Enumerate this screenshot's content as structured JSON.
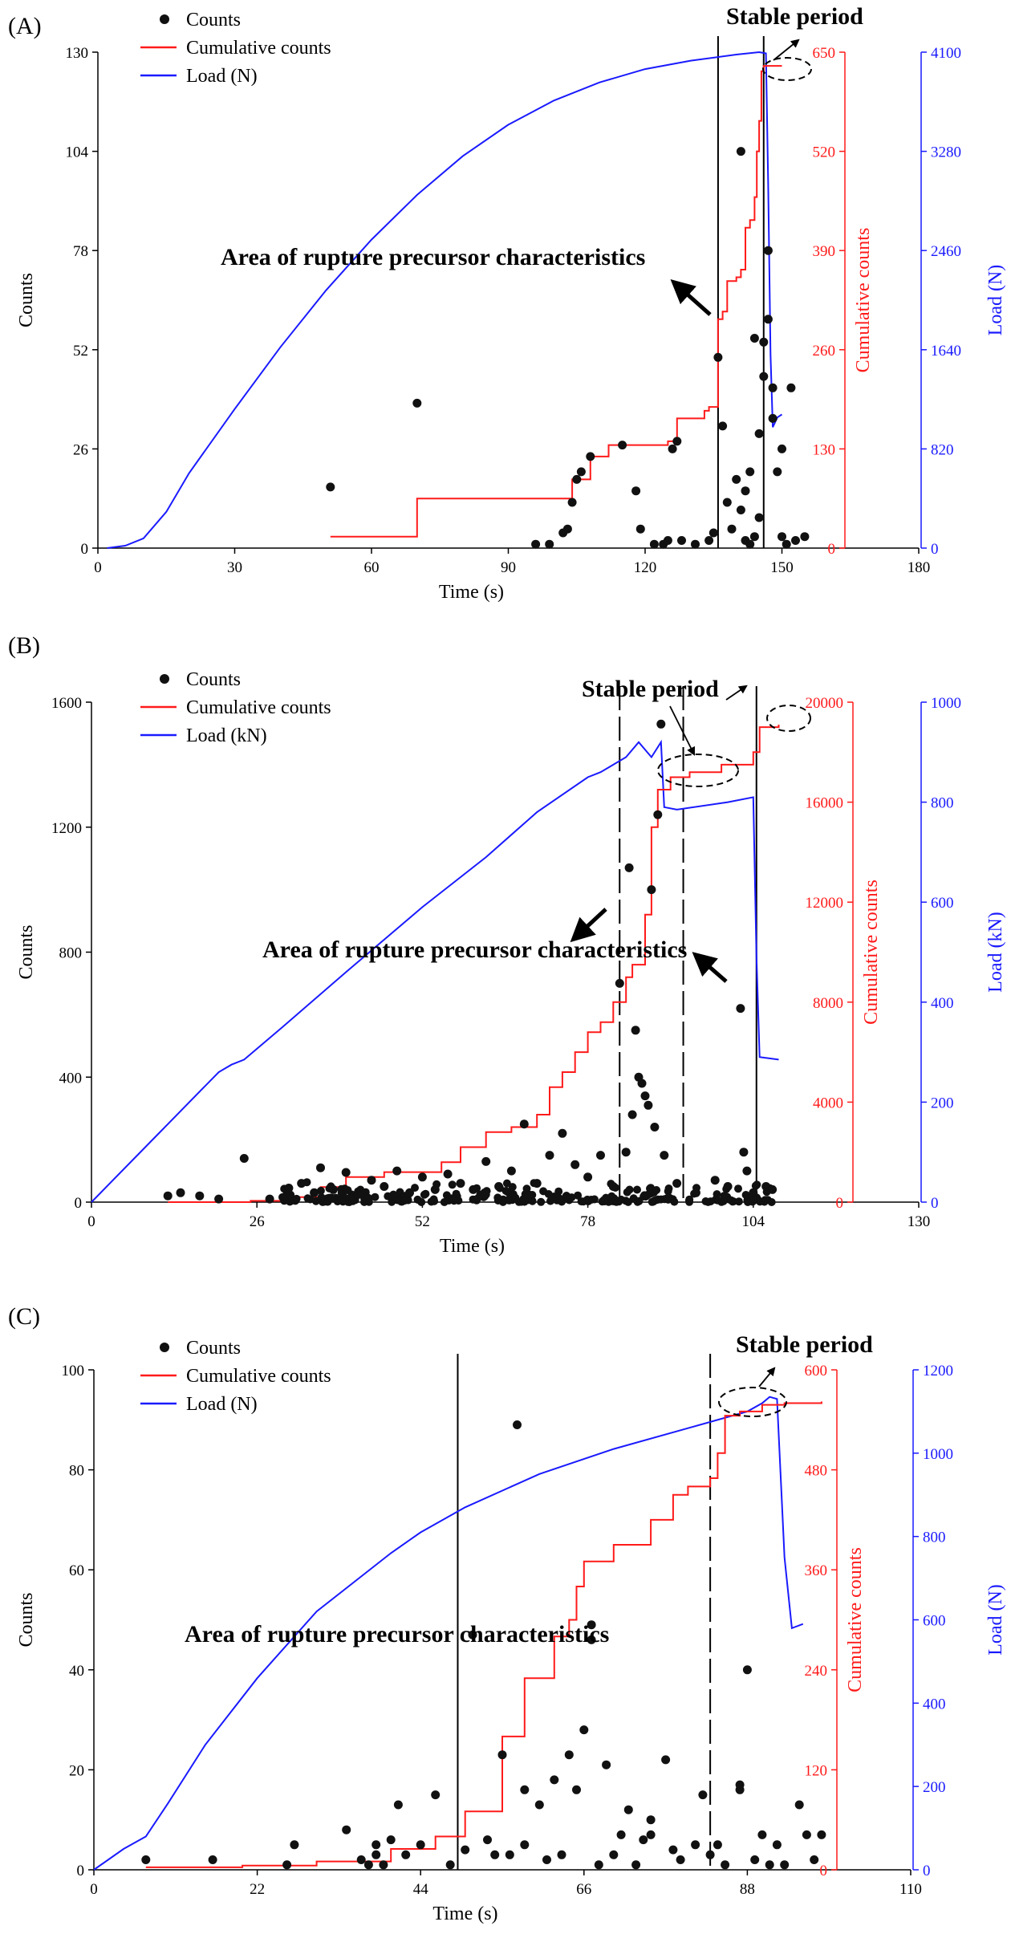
{
  "colors": {
    "counts": "#111111",
    "cumulative": "#ff1a1a",
    "load": "#1a1aff",
    "axis": "#000000"
  },
  "legend_labels": {
    "counts": "Counts",
    "cumulative": "Cumulative counts"
  },
  "chart_data": [
    {
      "panel": "(A)",
      "type": "scatter+line",
      "xlabel": "Time (s)",
      "ylabel": "Counts",
      "y2label": "Cumulative counts",
      "y3label": "Load (N)",
      "legend": [
        "Counts",
        "Cumulative counts",
        "Load (N)"
      ],
      "x_range": [
        0,
        180
      ],
      "x_ticks": [
        0,
        30,
        60,
        90,
        120,
        150,
        180
      ],
      "y_range": [
        0,
        130
      ],
      "y_ticks": [
        0,
        26,
        52,
        78,
        104,
        130
      ],
      "y2_range": [
        0,
        650
      ],
      "y2_ticks": [
        0,
        130,
        260,
        390,
        520,
        650
      ],
      "y3_range": [
        0,
        4100
      ],
      "y3_ticks": [
        0,
        820,
        1640,
        2460,
        3280,
        4100
      ],
      "counts": [
        [
          51,
          16
        ],
        [
          70,
          38
        ],
        [
          96,
          1
        ],
        [
          99,
          1
        ],
        [
          102,
          4
        ],
        [
          103,
          5
        ],
        [
          104,
          12
        ],
        [
          105,
          18
        ],
        [
          106,
          20
        ],
        [
          108,
          24
        ],
        [
          115,
          27
        ],
        [
          118,
          15
        ],
        [
          119,
          5
        ],
        [
          122,
          1
        ],
        [
          124,
          1
        ],
        [
          125,
          2
        ],
        [
          126,
          26
        ],
        [
          127,
          28
        ],
        [
          128,
          2
        ],
        [
          131,
          1
        ],
        [
          134,
          2
        ],
        [
          135,
          4
        ],
        [
          136,
          50
        ],
        [
          137,
          32
        ],
        [
          138,
          12
        ],
        [
          139,
          5
        ],
        [
          140,
          18
        ],
        [
          141,
          10
        ],
        [
          141,
          104
        ],
        [
          142,
          15
        ],
        [
          142,
          2
        ],
        [
          143,
          20
        ],
        [
          143,
          1
        ],
        [
          144,
          55
        ],
        [
          144,
          3
        ],
        [
          145,
          30
        ],
        [
          145,
          8
        ],
        [
          146,
          45
        ],
        [
          146,
          54
        ],
        [
          147,
          78
        ],
        [
          147,
          60
        ],
        [
          148,
          42
        ],
        [
          148,
          34
        ],
        [
          149,
          20
        ],
        [
          150,
          26
        ],
        [
          150,
          3
        ],
        [
          151,
          1
        ],
        [
          152,
          42
        ],
        [
          153,
          2
        ],
        [
          155,
          3
        ]
      ],
      "cumulative": [
        [
          51,
          15
        ],
        [
          70,
          65
        ],
        [
          100,
          65
        ],
        [
          104,
          90
        ],
        [
          108,
          120
        ],
        [
          112,
          135
        ],
        [
          125,
          140
        ],
        [
          127,
          170
        ],
        [
          133,
          180
        ],
        [
          134,
          185
        ],
        [
          136,
          300
        ],
        [
          137,
          310
        ],
        [
          138,
          350
        ],
        [
          140,
          355
        ],
        [
          141,
          365
        ],
        [
          142,
          420
        ],
        [
          143,
          430
        ],
        [
          144,
          460
        ],
        [
          144.5,
          520
        ],
        [
          145,
          560
        ],
        [
          145.5,
          625
        ],
        [
          146,
          632
        ],
        [
          150,
          632
        ]
      ],
      "load": [
        [
          2,
          0
        ],
        [
          6,
          20
        ],
        [
          10,
          80
        ],
        [
          15,
          300
        ],
        [
          20,
          620
        ],
        [
          30,
          1150
        ],
        [
          40,
          1660
        ],
        [
          50,
          2130
        ],
        [
          60,
          2550
        ],
        [
          70,
          2920
        ],
        [
          80,
          3240
        ],
        [
          90,
          3500
        ],
        [
          100,
          3700
        ],
        [
          110,
          3850
        ],
        [
          120,
          3960
        ],
        [
          130,
          4030
        ],
        [
          140,
          4080
        ],
        [
          145,
          4100
        ],
        [
          146.5,
          4090
        ],
        [
          147,
          3000
        ],
        [
          147.5,
          1600
        ],
        [
          148,
          1000
        ],
        [
          149,
          1080
        ],
        [
          150,
          1105
        ]
      ],
      "vlines": [
        {
          "x": 136,
          "style": "solid"
        },
        {
          "x": 146,
          "style": "solid"
        }
      ],
      "annotations": {
        "region": "Area of rupture precursor characteristics",
        "stable": "Stable period"
      }
    },
    {
      "panel": "(B)",
      "type": "scatter+line",
      "xlabel": "Time (s)",
      "ylabel": "Counts",
      "y2label": "Cumulative counts",
      "y3label": "Load (kN)",
      "legend": [
        "Counts",
        "Cumulative counts",
        "Load (kN)"
      ],
      "x_range": [
        0,
        130
      ],
      "x_ticks": [
        0,
        26,
        52,
        78,
        104,
        130
      ],
      "y_range": [
        0,
        1600
      ],
      "y_ticks": [
        0,
        400,
        800,
        1200,
        1600
      ],
      "y2_range": [
        0,
        20000
      ],
      "y2_ticks": [
        0,
        4000,
        8000,
        12000,
        16000,
        20000
      ],
      "y3_range": [
        0,
        1000
      ],
      "y3_ticks": [
        0,
        200,
        400,
        600,
        800,
        1000
      ],
      "counts": [
        [
          12,
          20
        ],
        [
          14,
          30
        ],
        [
          17,
          20
        ],
        [
          20,
          10
        ],
        [
          24,
          140
        ],
        [
          28,
          10
        ],
        [
          31,
          45
        ],
        [
          33,
          60
        ],
        [
          35,
          30
        ],
        [
          36,
          110
        ],
        [
          38,
          40
        ],
        [
          40,
          95
        ],
        [
          42,
          25
        ],
        [
          44,
          70
        ],
        [
          46,
          50
        ],
        [
          48,
          100
        ],
        [
          50,
          30
        ],
        [
          52,
          80
        ],
        [
          54,
          40
        ],
        [
          56,
          90
        ],
        [
          58,
          60
        ],
        [
          60,
          40
        ],
        [
          62,
          130
        ],
        [
          64,
          50
        ],
        [
          66,
          100
        ],
        [
          68,
          250
        ],
        [
          70,
          60
        ],
        [
          72,
          150
        ],
        [
          74,
          220
        ],
        [
          76,
          120
        ],
        [
          78,
          80
        ],
        [
          80,
          150
        ],
        [
          82,
          50
        ],
        [
          83,
          700
        ],
        [
          84,
          160
        ],
        [
          84.5,
          1070
        ],
        [
          85,
          280
        ],
        [
          85.5,
          550
        ],
        [
          86,
          400
        ],
        [
          86.5,
          380
        ],
        [
          87,
          340
        ],
        [
          87.5,
          310
        ],
        [
          88,
          1000
        ],
        [
          88.5,
          240
        ],
        [
          89,
          1240
        ],
        [
          89.5,
          1530
        ],
        [
          90,
          150
        ],
        [
          92,
          60
        ],
        [
          95,
          30
        ],
        [
          98,
          70
        ],
        [
          100,
          50
        ],
        [
          102,
          620
        ],
        [
          102.5,
          160
        ],
        [
          103,
          100
        ],
        [
          104,
          30
        ],
        [
          106,
          50
        ],
        [
          107,
          40
        ]
      ],
      "counts_baseline_note": "dense cluster of points between 0 and about 60 counts from 30 s to 106 s",
      "cumulative": [
        [
          12,
          0
        ],
        [
          25,
          50
        ],
        [
          30,
          200
        ],
        [
          36,
          600
        ],
        [
          40,
          1000
        ],
        [
          46,
          1200
        ],
        [
          55,
          1600
        ],
        [
          58,
          2200
        ],
        [
          62,
          2800
        ],
        [
          66,
          3000
        ],
        [
          70,
          3500
        ],
        [
          72,
          4600
        ],
        [
          74,
          5200
        ],
        [
          76,
          6000
        ],
        [
          78,
          6800
        ],
        [
          80,
          7200
        ],
        [
          82,
          8000
        ],
        [
          84,
          9000
        ],
        [
          85,
          9500
        ],
        [
          87,
          11500
        ],
        [
          88,
          15000
        ],
        [
          89,
          16500
        ],
        [
          91,
          17000
        ],
        [
          94,
          17200
        ],
        [
          99,
          17500
        ],
        [
          104,
          18000
        ],
        [
          105,
          19000
        ],
        [
          108,
          19100
        ]
      ],
      "load": [
        [
          0,
          0
        ],
        [
          10,
          130
        ],
        [
          20,
          260
        ],
        [
          22,
          275
        ],
        [
          24,
          285
        ],
        [
          30,
          350
        ],
        [
          40,
          460
        ],
        [
          52,
          590
        ],
        [
          62,
          690
        ],
        [
          70,
          780
        ],
        [
          78,
          850
        ],
        [
          80,
          860
        ],
        [
          82,
          875
        ],
        [
          84,
          890
        ],
        [
          86,
          920
        ],
        [
          88,
          890
        ],
        [
          89.5,
          920
        ],
        [
          90,
          790
        ],
        [
          92,
          785
        ],
        [
          100,
          800
        ],
        [
          104,
          810
        ],
        [
          104.5,
          490
        ],
        [
          105,
          290
        ],
        [
          108,
          285
        ]
      ],
      "vlines": [
        {
          "x": 83,
          "style": "dashed"
        },
        {
          "x": 93,
          "style": "dashed"
        },
        {
          "x": 104.5,
          "style": "solid"
        }
      ],
      "annotations": {
        "region": "Area of rupture precursor characteristics",
        "stable": "Stable period"
      }
    },
    {
      "panel": "(C)",
      "type": "scatter+line",
      "xlabel": "Time (s)",
      "ylabel": "Counts",
      "y2label": "Cumulative counts",
      "y3label": "Load (N)",
      "legend": [
        "Counts",
        "Cumulative counts",
        "Load (N)"
      ],
      "x_range": [
        0,
        110
      ],
      "x_ticks": [
        0,
        22,
        44,
        66,
        88,
        110
      ],
      "y_range": [
        0,
        100
      ],
      "y_ticks": [
        0,
        20,
        40,
        60,
        80,
        100
      ],
      "y2_range": [
        0,
        600
      ],
      "y2_ticks": [
        0,
        120,
        240,
        360,
        480,
        600
      ],
      "y3_range": [
        0,
        1200
      ],
      "y3_ticks": [
        0,
        200,
        400,
        600,
        800,
        1000,
        1200
      ],
      "counts": [
        [
          7,
          2
        ],
        [
          16,
          2
        ],
        [
          26,
          1
        ],
        [
          27,
          5
        ],
        [
          34,
          8
        ],
        [
          36,
          2
        ],
        [
          37,
          1
        ],
        [
          38,
          3
        ],
        [
          38,
          5
        ],
        [
          39,
          1
        ],
        [
          40,
          6
        ],
        [
          41,
          13
        ],
        [
          42,
          3
        ],
        [
          44,
          5
        ],
        [
          46,
          15
        ],
        [
          48,
          1
        ],
        [
          50,
          4
        ],
        [
          51,
          47
        ],
        [
          53,
          6
        ],
        [
          54,
          3
        ],
        [
          55,
          23
        ],
        [
          56,
          3
        ],
        [
          57,
          89
        ],
        [
          58,
          16
        ],
        [
          58,
          5
        ],
        [
          60,
          13
        ],
        [
          61,
          2
        ],
        [
          62,
          18
        ],
        [
          63,
          3
        ],
        [
          64,
          23
        ],
        [
          65,
          16
        ],
        [
          66,
          28
        ],
        [
          67,
          46
        ],
        [
          67,
          49
        ],
        [
          68,
          1
        ],
        [
          69,
          21
        ],
        [
          70,
          3
        ],
        [
          71,
          7
        ],
        [
          72,
          12
        ],
        [
          73,
          1
        ],
        [
          74,
          6
        ],
        [
          75,
          7
        ],
        [
          75,
          10
        ],
        [
          77,
          22
        ],
        [
          78,
          4
        ],
        [
          79,
          2
        ],
        [
          81,
          5
        ],
        [
          82,
          15
        ],
        [
          83,
          3
        ],
        [
          84,
          5
        ],
        [
          85,
          1
        ],
        [
          87,
          17
        ],
        [
          87,
          16
        ],
        [
          88,
          40
        ],
        [
          89,
          2
        ],
        [
          90,
          7
        ],
        [
          91,
          1
        ],
        [
          92,
          5
        ],
        [
          93,
          1
        ],
        [
          95,
          13
        ],
        [
          96,
          7
        ],
        [
          97,
          2
        ],
        [
          98,
          7
        ]
      ],
      "cumulative": [
        [
          7,
          3
        ],
        [
          20,
          5
        ],
        [
          30,
          10
        ],
        [
          40,
          25
        ],
        [
          46,
          40
        ],
        [
          50,
          70
        ],
        [
          55,
          160
        ],
        [
          58,
          230
        ],
        [
          62,
          280
        ],
        [
          64,
          300
        ],
        [
          65,
          340
        ],
        [
          66,
          370
        ],
        [
          70,
          390
        ],
        [
          75,
          420
        ],
        [
          78,
          450
        ],
        [
          80,
          460
        ],
        [
          83,
          470
        ],
        [
          84,
          500
        ],
        [
          85,
          545
        ],
        [
          87,
          550
        ],
        [
          90,
          558
        ],
        [
          93,
          560
        ],
        [
          98,
          562
        ]
      ],
      "load": [
        [
          0,
          0
        ],
        [
          4,
          50
        ],
        [
          7,
          80
        ],
        [
          10,
          160
        ],
        [
          15,
          300
        ],
        [
          22,
          460
        ],
        [
          30,
          620
        ],
        [
          40,
          760
        ],
        [
          44,
          810
        ],
        [
          50,
          870
        ],
        [
          60,
          950
        ],
        [
          70,
          1010
        ],
        [
          80,
          1060
        ],
        [
          88,
          1100
        ],
        [
          90,
          1120
        ],
        [
          91,
          1135
        ],
        [
          92,
          1130
        ],
        [
          93,
          750
        ],
        [
          94,
          580
        ],
        [
          95.5,
          590
        ]
      ],
      "vlines": [
        {
          "x": 49,
          "style": "solid"
        },
        {
          "x": 83,
          "style": "dashed"
        }
      ],
      "annotations": {
        "region": "Area of rupture precursor characteristics",
        "stable": "Stable period"
      }
    }
  ]
}
